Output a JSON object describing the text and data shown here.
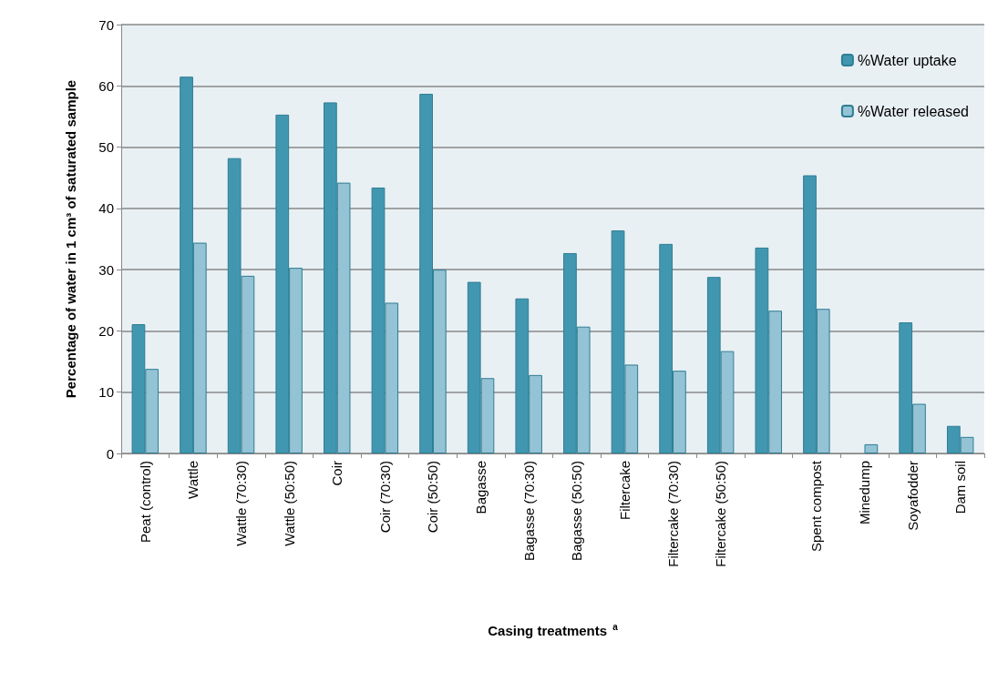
{
  "chart_data": {
    "type": "bar",
    "xlabel": "Casing treatments $^{a}$",
    "ylabel": "Percentage of water in 1 cm³ of saturated sample",
    "categories": [
      "Peat (control)",
      "Wattle",
      "Wattle (70:30)",
      "Wattle (50:50)",
      "Coir",
      "Coir (70:30)",
      "Coir (50:50)",
      "Bagasse",
      "Bagasse (70:30)",
      "Bagasse (50:50)",
      "Filtercake",
      "Filtercake (70:30)",
      "Filtercake (50:50)",
      null,
      "Spent compost",
      "Minedump",
      "Soyafodder",
      "Dam soil"
    ],
    "series": [
      {
        "name": "%Water uptake",
        "color": "#4297b0",
        "values": [
          21.1,
          61.5,
          48.2,
          55.3,
          57.3,
          43.4,
          58.7,
          28.0,
          25.3,
          32.7,
          36.4,
          34.2,
          28.8,
          33.6,
          45.4,
          null,
          21.4,
          4.5
        ]
      },
      {
        "name": "%Water released",
        "color": "#93c3d5",
        "values": [
          13.8,
          34.4,
          29.0,
          30.3,
          44.2,
          24.6,
          30.0,
          12.3,
          12.8,
          20.7,
          14.5,
          13.5,
          16.7,
          23.3,
          23.6,
          1.5,
          8.1,
          2.7
        ]
      }
    ],
    "ylim": [
      0,
      70
    ],
    "yticks": [
      0,
      10,
      20,
      30,
      40,
      50,
      60,
      70
    ],
    "grid": "y",
    "legend": "top right"
  }
}
